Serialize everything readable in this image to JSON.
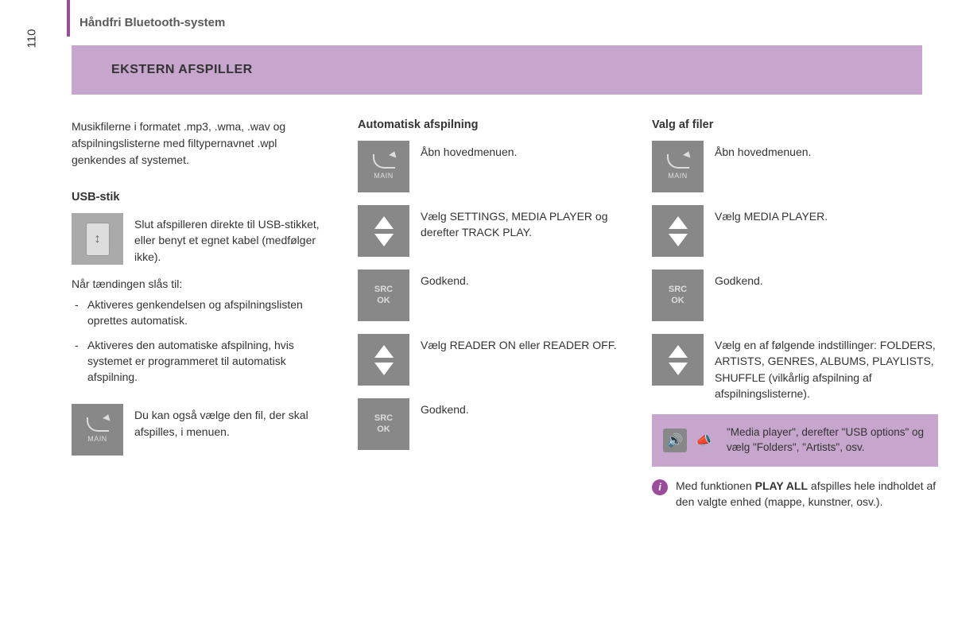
{
  "page_number": "110",
  "header": "Håndfri Bluetooth-system",
  "title": "EKSTERN AFSPILLER",
  "colors": {
    "accent": "#9b4d9b",
    "title_bg": "#c6a6cc",
    "icon_bg": "#888888"
  },
  "col1": {
    "intro": "Musikfilerne i formatet .mp3, .wma, .wav og afspilningslisterne med filtypernavnet .wpl genkendes af systemet.",
    "usb_head": "USB-stik",
    "usb_text": "Slut afspilleren direkte til USB-stikket, eller benyt et egnet kabel (medfølger ikke).",
    "ign_lead": "Når tændingen slås til:",
    "ign_b1": "Aktiveres genkendelsen og afspilningslisten oprettes automatisk.",
    "ign_b2": "Aktiveres den automatiske afspilning, hvis systemet er programmeret til automatisk afspilning.",
    "menu_text": "Du kan også vælge den fil, der skal afspilles, i menuen."
  },
  "col2": {
    "head": "Automatisk afspilning",
    "s1": "Åbn hovedmenuen.",
    "s2": "Vælg SETTINGS, MEDIA PLAYER og derefter TRACK PLAY.",
    "s3": "Godkend.",
    "s4": "Vælg READER ON eller READER OFF.",
    "s5": "Godkend."
  },
  "col3": {
    "head": "Valg af filer",
    "s1": "Åbn hovedmenuen.",
    "s2": "Vælg MEDIA PLAYER.",
    "s3": "Godkend.",
    "s4": "Vælg en af følgende indstillinger: FOLDERS, ARTISTS, GENRES, ALBUMS, PLAYLISTS, SHUFFLE (vilkårlig afspilning af afspilningslisterne).",
    "voice": "\"Media player\", derefter \"USB options\" og vælg \"Folders\", \"Artists\", osv.",
    "info_pre": "Med funktionen ",
    "info_bold": "PLAY ALL",
    "info_post": " afspilles hele indholdet af den valgte enhed (mappe, kunstner, osv.)."
  },
  "labels": {
    "main": "MAIN",
    "src": "SRC",
    "ok": "OK"
  }
}
